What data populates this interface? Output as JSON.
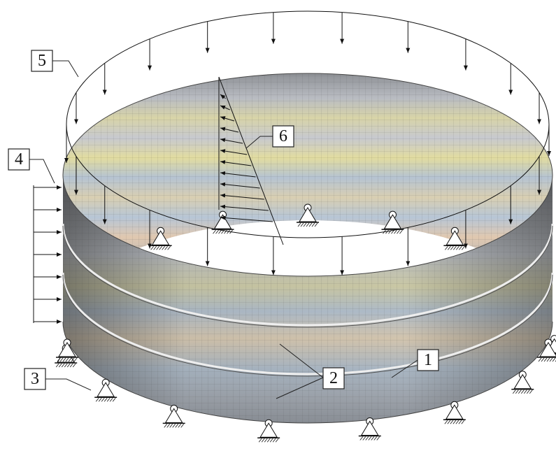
{
  "callouts": [
    "1",
    "2",
    "3",
    "4",
    "5",
    "6"
  ]
}
